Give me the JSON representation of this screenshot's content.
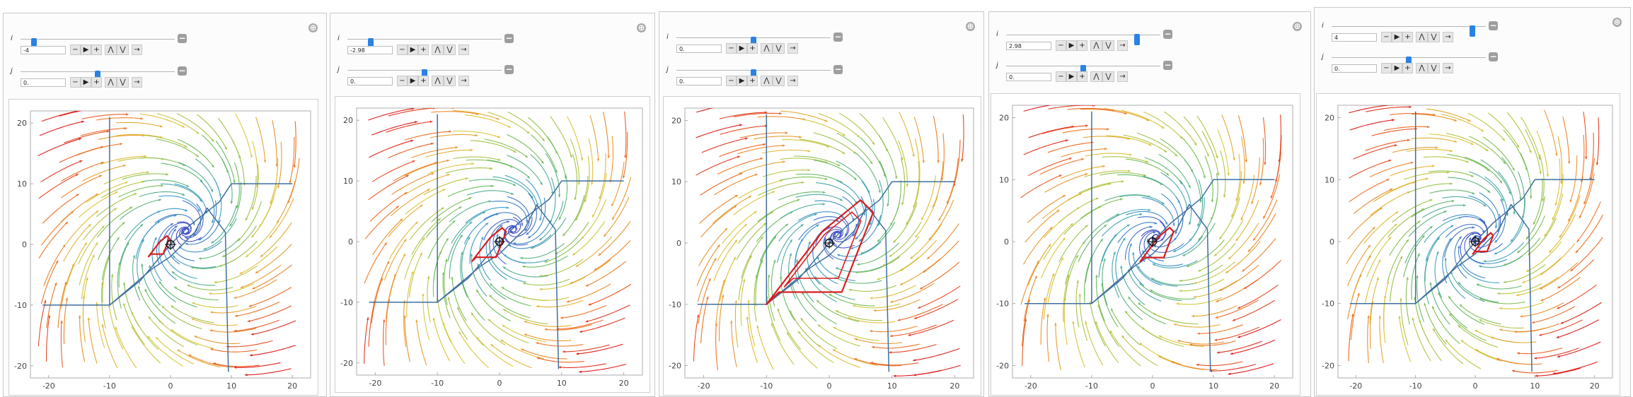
{
  "ui": {
    "add_icon": "⊕",
    "remove_icon": "−",
    "buttons": [
      "−",
      "▶",
      "+",
      "⋀",
      "⋁",
      "→"
    ]
  },
  "panels": [
    {
      "i_label": "i",
      "j_label": "j",
      "i_value": "-4",
      "j_value": "0.",
      "i_frac": 0.07,
      "j_frac": 0.5
    },
    {
      "i_label": "i",
      "j_label": "j",
      "i_value": "-2.98",
      "j_value": "0.",
      "i_frac": 0.14,
      "j_frac": 0.5
    },
    {
      "i_label": "i",
      "j_label": "j",
      "i_value": "0.",
      "j_value": "0.",
      "i_frac": 0.5,
      "j_frac": 0.5
    },
    {
      "i_label": "i",
      "j_label": "j",
      "i_value": "2.98",
      "j_value": "0.",
      "i_frac": 0.86,
      "j_frac": 0.5
    },
    {
      "i_label": "i",
      "j_label": "j",
      "i_value": "4",
      "j_value": "0.",
      "i_frac": 0.93,
      "j_frac": 0.5
    }
  ],
  "chart_data": [
    {
      "type": "streamplot",
      "title": "",
      "xlabel": "",
      "ylabel": "",
      "xlim": [
        -23,
        23
      ],
      "ylim": [
        -22,
        22
      ],
      "x_ticks": [
        "-20",
        "-10",
        "0",
        "10",
        "20"
      ],
      "y_ticks": [
        "20",
        "10",
        "0",
        "-10",
        "-20"
      ],
      "equilibrium": [
        0,
        0
      ],
      "i": -4,
      "j": 0
    },
    {
      "type": "streamplot",
      "title": "",
      "xlabel": "",
      "ylabel": "",
      "xlim": [
        -23,
        23
      ],
      "ylim": [
        -22,
        22
      ],
      "x_ticks": [
        "-20",
        "-10",
        "0",
        "10",
        "20"
      ],
      "y_ticks": [
        "20",
        "10",
        "0",
        "-10",
        "-20"
      ],
      "equilibrium": [
        0,
        0
      ],
      "i": -2.98,
      "j": 0
    },
    {
      "type": "streamplot",
      "title": "",
      "xlabel": "",
      "ylabel": "",
      "xlim": [
        -23,
        23
      ],
      "ylim": [
        -22,
        22
      ],
      "x_ticks": [
        "-20",
        "-10",
        "0",
        "10",
        "20"
      ],
      "y_ticks": [
        "20",
        "10",
        "0",
        "-10",
        "-20"
      ],
      "equilibrium": [
        0,
        0
      ],
      "i": 0,
      "j": 0
    },
    {
      "type": "streamplot",
      "title": "",
      "xlabel": "",
      "ylabel": "",
      "xlim": [
        -23,
        23
      ],
      "ylim": [
        -22,
        22
      ],
      "x_ticks": [
        "-20",
        "-10",
        "0",
        "10",
        "20"
      ],
      "y_ticks": [
        "20",
        "10",
        "0",
        "-10",
        "-20"
      ],
      "equilibrium": [
        0,
        0
      ],
      "i": 2.98,
      "j": 0
    },
    {
      "type": "streamplot",
      "title": "",
      "xlabel": "",
      "ylabel": "",
      "xlim": [
        -23,
        23
      ],
      "ylim": [
        -22,
        22
      ],
      "x_ticks": [
        "-20",
        "-10",
        "0",
        "10",
        "20"
      ],
      "y_ticks": [
        "20",
        "10",
        "0",
        "-10",
        "-20"
      ],
      "equilibrium": [
        0,
        0
      ],
      "i": 4,
      "j": 0
    }
  ]
}
